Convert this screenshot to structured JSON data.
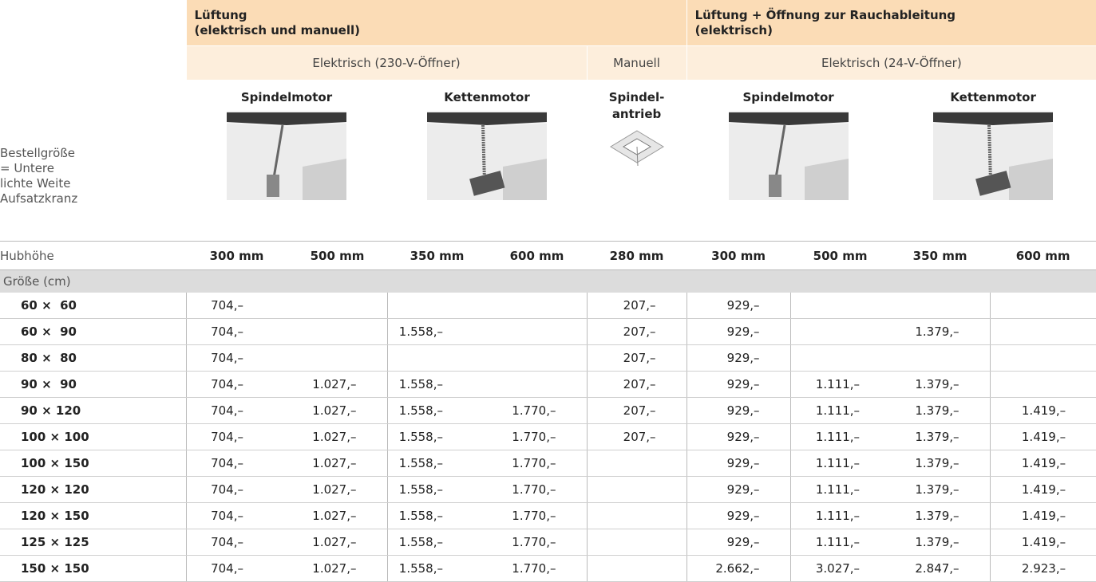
{
  "header": {
    "groups": [
      {
        "lines": [
          "Lüftung",
          "(elektrisch und manuell)"
        ]
      },
      {
        "lines": [
          "Lüftung + Öffnung zur Rauchableitung",
          "(elektrisch)"
        ]
      }
    ],
    "subgroups": [
      "Elektrisch (230-V-Öffner)",
      "Manuell",
      "Elektrisch (24-V-Öffner)"
    ],
    "drives": [
      {
        "lines": [
          "Spindelmotor"
        ]
      },
      {
        "lines": [
          "Kettenmotor"
        ]
      },
      {
        "lines": [
          "Spindel-",
          "antrieb"
        ]
      },
      {
        "lines": [
          "Spindelmotor"
        ]
      },
      {
        "lines": [
          "Kettenmotor"
        ]
      }
    ],
    "row_label": [
      "Bestellgröße",
      "= Untere",
      "lichte Weite",
      "Aufsatzkranz"
    ],
    "stroke_label": "Hubhöhe",
    "strokes": [
      "300 mm",
      "500 mm",
      "350 mm",
      "600 mm",
      "280 mm",
      "300 mm",
      "500 mm",
      "350 mm",
      "600 mm"
    ]
  },
  "table": {
    "section": "Größe (cm)",
    "rows": [
      {
        "size": "60 ×  60",
        "prices": [
          "704,–",
          null,
          null,
          null,
          "207,–",
          "929,–",
          null,
          null,
          null
        ]
      },
      {
        "size": "60 ×  90",
        "prices": [
          "704,–",
          null,
          "1.558,–",
          null,
          "207,–",
          "929,–",
          null,
          "1.379,–",
          null
        ]
      },
      {
        "size": "80 ×  80",
        "prices": [
          "704,–",
          null,
          null,
          null,
          "207,–",
          "929,–",
          null,
          null,
          null
        ]
      },
      {
        "size": "90 ×  90",
        "prices": [
          "704,–",
          "1.027,–",
          "1.558,–",
          null,
          "207,–",
          "929,–",
          "1.111,–",
          "1.379,–",
          null
        ]
      },
      {
        "size": "90 × 120",
        "prices": [
          "704,–",
          "1.027,–",
          "1.558,–",
          "1.770,–",
          "207,–",
          "929,–",
          "1.111,–",
          "1.379,–",
          "1.419,–"
        ]
      },
      {
        "size": "100 × 100",
        "prices": [
          "704,–",
          "1.027,–",
          "1.558,–",
          "1.770,–",
          "207,–",
          "929,–",
          "1.111,–",
          "1.379,–",
          "1.419,–"
        ]
      },
      {
        "size": "100 × 150",
        "prices": [
          "704,–",
          "1.027,–",
          "1.558,–",
          "1.770,–",
          null,
          "929,–",
          "1.111,–",
          "1.379,–",
          "1.419,–"
        ]
      },
      {
        "size": "120 × 120",
        "prices": [
          "704,–",
          "1.027,–",
          "1.558,–",
          "1.770,–",
          null,
          "929,–",
          "1.111,–",
          "1.379,–",
          "1.419,–"
        ]
      },
      {
        "size": "120 × 150",
        "prices": [
          "704,–",
          "1.027,–",
          "1.558,–",
          "1.770,–",
          null,
          "929,–",
          "1.111,–",
          "1.379,–",
          "1.419,–"
        ]
      },
      {
        "size": "125 × 125",
        "prices": [
          "704,–",
          "1.027,–",
          "1.558,–",
          "1.770,–",
          null,
          "929,–",
          "1.111,–",
          "1.379,–",
          "1.419,–"
        ]
      },
      {
        "size": "150 × 150",
        "prices": [
          "704,–",
          "1.027,–",
          "1.558,–",
          "1.770,–",
          null,
          "2.662,–",
          "3.027,–",
          "2.847,–",
          "2.923,–"
        ]
      }
    ]
  }
}
